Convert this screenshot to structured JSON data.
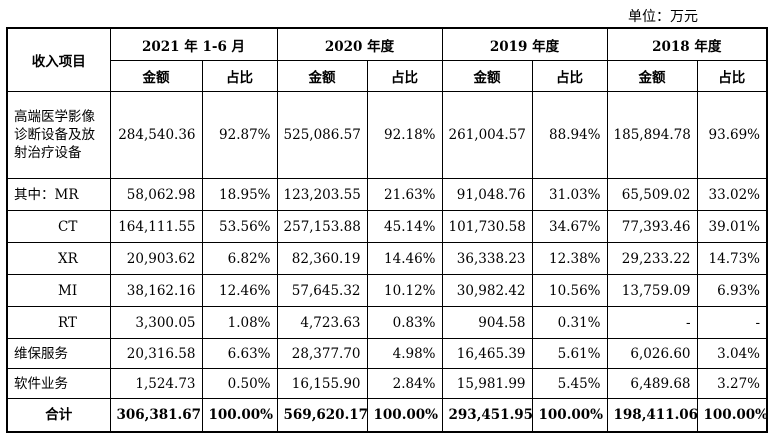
{
  "unit_note": "单位：万元",
  "header": {
    "item_label": "收入项目",
    "periods": [
      "2021 年 1-6 月",
      "2020 年度",
      "2019 年度",
      "2018 年度"
    ],
    "amount_label": "金额",
    "share_label": "占比"
  },
  "rows": [
    {
      "label": "高端医学影像诊断设备及放射治疗设备",
      "cells": [
        "284,540.36",
        "92.87%",
        "525,086.57",
        "92.18%",
        "261,004.57",
        "88.94%",
        "185,894.78",
        "93.69%"
      ]
    },
    {
      "label": "其中：MR",
      "cells": [
        "58,062.98",
        "18.95%",
        "123,203.55",
        "21.63%",
        "91,048.76",
        "31.03%",
        "65,509.02",
        "33.02%"
      ]
    },
    {
      "label": "CT",
      "cells": [
        "164,111.55",
        "53.56%",
        "257,153.88",
        "45.14%",
        "101,730.58",
        "34.67%",
        "77,393.46",
        "39.01%"
      ]
    },
    {
      "label": "XR",
      "cells": [
        "20,903.62",
        "6.82%",
        "82,360.19",
        "14.46%",
        "36,338.23",
        "12.38%",
        "29,233.22",
        "14.73%"
      ]
    },
    {
      "label": "MI",
      "cells": [
        "38,162.16",
        "12.46%",
        "57,645.32",
        "10.12%",
        "30,982.42",
        "10.56%",
        "13,759.09",
        "6.93%"
      ]
    },
    {
      "label": "RT",
      "cells": [
        "3,300.05",
        "1.08%",
        "4,723.63",
        "0.83%",
        "904.58",
        "0.31%",
        "-",
        "-"
      ]
    },
    {
      "label": "维保服务",
      "cells": [
        "20,316.58",
        "6.63%",
        "28,377.70",
        "4.98%",
        "16,465.39",
        "5.61%",
        "6,026.60",
        "3.04%"
      ]
    },
    {
      "label": "软件业务",
      "cells": [
        "1,524.73",
        "0.50%",
        "16,155.90",
        "2.84%",
        "15,981.99",
        "5.45%",
        "6,489.68",
        "3.27%"
      ]
    }
  ],
  "total": {
    "label": "合计",
    "cells": [
      "306,381.67",
      "100.00%",
      "569,620.17",
      "100.00%",
      "293,451.95",
      "100.00%",
      "198,411.06",
      "100.00%"
    ]
  }
}
